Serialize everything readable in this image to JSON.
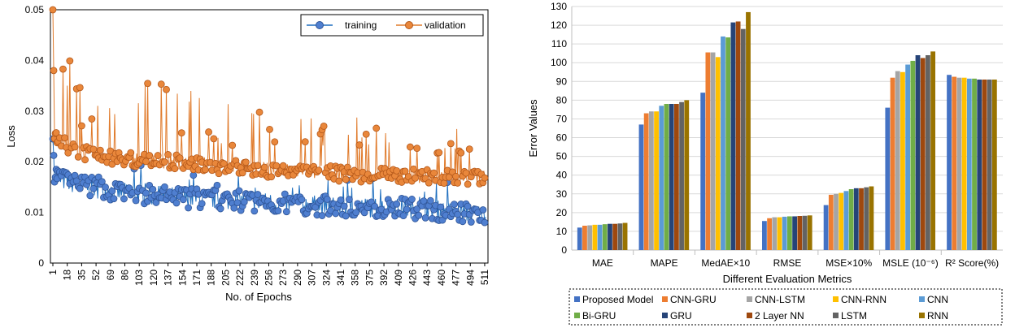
{
  "chart_data": [
    {
      "type": "line",
      "xlabel": "No. of Epochs",
      "ylabel": "Loss",
      "ylim": [
        0,
        0.05
      ],
      "yticks": [
        "0",
        "0.01",
        "0.02",
        "0.03",
        "0.04",
        "0.05"
      ],
      "xticks": [
        "1",
        "18",
        "35",
        "52",
        "69",
        "86",
        "103",
        "120",
        "137",
        "154",
        "171",
        "188",
        "205",
        "222",
        "239",
        "256",
        "273",
        "290",
        "307",
        "324",
        "341",
        "358",
        "375",
        "392",
        "409",
        "426",
        "443",
        "460",
        "477",
        "494",
        "511"
      ],
      "epochs": 512,
      "legend_position": "top-right",
      "series": [
        {
          "name": "training",
          "color": "#1f6fbf",
          "marker_fill": "#4f7fd0",
          "note_values": "sampled every epoch, approx",
          "anchors_x": [
            1,
            3,
            10,
            30,
            60,
            100,
            150,
            200,
            250,
            300,
            350,
            400,
            450,
            511
          ],
          "anchors_y": [
            0.0245,
            0.018,
            0.0165,
            0.0155,
            0.0145,
            0.0135,
            0.013,
            0.0125,
            0.012,
            0.0115,
            0.011,
            0.011,
            0.0105,
            0.0095
          ]
        },
        {
          "name": "validation",
          "color": "#e07b2c",
          "marker_fill": "#e9873b",
          "anchors_x": [
            1,
            3,
            10,
            30,
            60,
            100,
            150,
            200,
            250,
            300,
            350,
            400,
            450,
            511
          ],
          "anchors_y": [
            0.05,
            0.026,
            0.024,
            0.022,
            0.021,
            0.0205,
            0.02,
            0.019,
            0.0185,
            0.018,
            0.0175,
            0.0175,
            0.017,
            0.017
          ]
        }
      ]
    },
    {
      "type": "bar",
      "xlabel": "Different Evaluation Metrics",
      "ylabel": "Error Values",
      "ylim": [
        0,
        130
      ],
      "yticks": [
        "0",
        "10",
        "20",
        "30",
        "40",
        "50",
        "60",
        "70",
        "80",
        "90",
        "100",
        "110",
        "120",
        "130"
      ],
      "categories": [
        "MAE",
        "MAPE",
        "MedAE×10",
        "RMSE",
        "MSE×10%",
        "MSLE (10⁻⁶)",
        "R² Score(%)"
      ],
      "legend_position": "bottom",
      "series": [
        {
          "name": "Proposed Model",
          "color": "#4472c4",
          "values": [
            12,
            67,
            84,
            15.5,
            24,
            76,
            93.5
          ]
        },
        {
          "name": "CNN-GRU",
          "color": "#ed7d31",
          "values": [
            13,
            73,
            105.5,
            17,
            29.5,
            92,
            92.5
          ]
        },
        {
          "name": "CNN-LSTM",
          "color": "#a5a5a5",
          "values": [
            13.2,
            74,
            105.5,
            17.5,
            30,
            95.5,
            92
          ]
        },
        {
          "name": "CNN-RNN",
          "color": "#ffc000",
          "values": [
            13.5,
            74,
            103,
            17.5,
            30.5,
            95,
            92
          ]
        },
        {
          "name": "CNN",
          "color": "#5b9bd5",
          "values": [
            13.5,
            77,
            114,
            17.8,
            31.5,
            99,
            91.5
          ]
        },
        {
          "name": "Bi-GRU",
          "color": "#70ad47",
          "values": [
            13.8,
            78,
            113.5,
            18,
            32.5,
            101,
            91.5
          ]
        },
        {
          "name": "GRU",
          "color": "#264478",
          "values": [
            14,
            78,
            121.5,
            18,
            33,
            104,
            91
          ]
        },
        {
          "name": "2 Layer NN",
          "color": "#9e480e",
          "values": [
            14,
            78,
            122,
            18.2,
            33,
            102.5,
            91
          ]
        },
        {
          "name": "LSTM",
          "color": "#636363",
          "values": [
            14.2,
            79,
            118,
            18.3,
            33.5,
            104,
            91
          ]
        },
        {
          "name": "RNN",
          "color": "#997300",
          "values": [
            14.5,
            80,
            127,
            18.5,
            34,
            106,
            91
          ]
        }
      ]
    }
  ]
}
